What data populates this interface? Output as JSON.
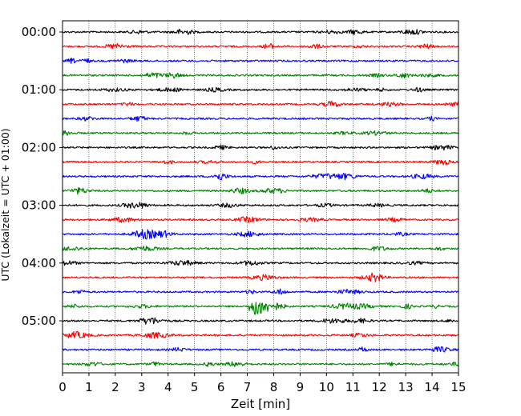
{
  "chart_data": {
    "type": "line",
    "title": "",
    "xlabel": "Zeit  [min]",
    "ylabel": "UTC (Lokalzeit = UTC + 01:00)",
    "xlim": [
      0,
      15
    ],
    "x_ticks": [
      "0",
      "1",
      "2",
      "3",
      "4",
      "5",
      "6",
      "7",
      "8",
      "9",
      "10",
      "11",
      "12",
      "13",
      "14",
      "15"
    ],
    "y_tick_labels": [
      "00:00",
      "01:00",
      "02:00",
      "03:00",
      "04:00",
      "05:00"
    ],
    "grid": "vertical dotted at each minute",
    "trace_interval_min": 15,
    "trace_colors": [
      "#000000",
      "#ff0000",
      "#0000ff",
      "#008000"
    ],
    "traces": [
      {
        "start": "00:00",
        "color": "#000000"
      },
      {
        "start": "00:15",
        "color": "#ff0000"
      },
      {
        "start": "00:30",
        "color": "#0000ff"
      },
      {
        "start": "00:45",
        "color": "#008000"
      },
      {
        "start": "01:00",
        "color": "#000000"
      },
      {
        "start": "01:15",
        "color": "#ff0000"
      },
      {
        "start": "01:30",
        "color": "#0000ff"
      },
      {
        "start": "01:45",
        "color": "#008000"
      },
      {
        "start": "02:00",
        "color": "#000000"
      },
      {
        "start": "02:15",
        "color": "#ff0000"
      },
      {
        "start": "02:30",
        "color": "#0000ff"
      },
      {
        "start": "02:45",
        "color": "#008000"
      },
      {
        "start": "03:00",
        "color": "#000000"
      },
      {
        "start": "03:15",
        "color": "#ff0000"
      },
      {
        "start": "03:30",
        "color": "#0000ff"
      },
      {
        "start": "03:45",
        "color": "#008000"
      },
      {
        "start": "04:00",
        "color": "#000000"
      },
      {
        "start": "04:15",
        "color": "#ff0000"
      },
      {
        "start": "04:30",
        "color": "#0000ff"
      },
      {
        "start": "04:45",
        "color": "#008000",
        "event": {
          "x_min": 7.3,
          "note": "seismic event between 7 and 8 min"
        }
      },
      {
        "start": "05:00",
        "color": "#000000"
      },
      {
        "start": "05:15",
        "color": "#ff0000"
      },
      {
        "start": "05:30",
        "color": "#0000ff"
      },
      {
        "start": "05:45",
        "color": "#008000"
      }
    ]
  }
}
